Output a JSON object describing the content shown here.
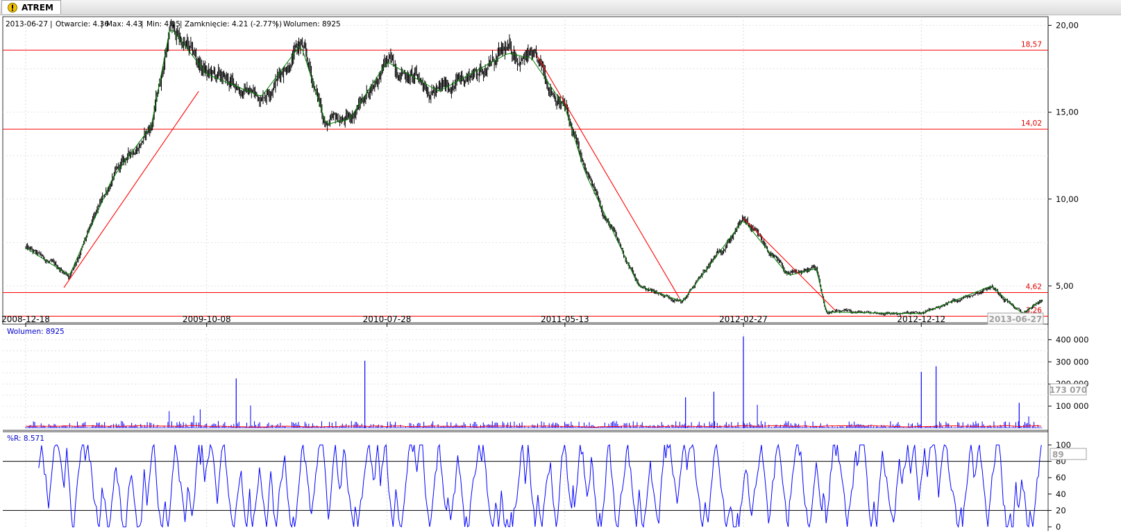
{
  "tab": {
    "label": "ATREM",
    "icon": "warning-icon"
  },
  "info_bar": {
    "date": "2013-06-27",
    "open": "Otwarcie: 4.36",
    "max": "Max: 4.43",
    "min": "Min: 4.15",
    "close": "Zamknięcie: 4.21 (-2.77%)",
    "volume": "Wolumen: 8925"
  },
  "colors": {
    "candles": "#000000",
    "close_line": "#008000",
    "levels": "#ff0000",
    "trendlines": "#ff0000",
    "volume": "#0000ff",
    "volume_avg": "#ff0000",
    "wpr": "#0000ff"
  },
  "chart_data": [
    {
      "type": "line",
      "name": "price",
      "ylim": [
        2.8,
        20.5
      ],
      "y_ticks": [
        "5,00",
        "10,00",
        "15,00",
        "20,00"
      ],
      "x_ticks": [
        "2008-12-18",
        "2009-10-08",
        "2010-07-28",
        "2011-05-13",
        "2012-02-27",
        "2012-12-12"
      ],
      "current_date_label": "2013-06-27",
      "x": [
        "2008-12-18",
        "2009-02-27",
        "2009-05-08",
        "2009-07-10",
        "2009-08-10",
        "2009-10-08",
        "2010-01-05",
        "2010-03-10",
        "2010-04-20",
        "2010-05-28",
        "2010-07-28",
        "2010-10-20",
        "2011-02-10",
        "2011-03-20",
        "2011-05-13",
        "2011-06-15",
        "2011-09-10",
        "2011-11-20",
        "2012-02-27",
        "2012-05-10",
        "2012-06-25",
        "2012-07-10",
        "2012-12-12",
        "2013-04-05",
        "2013-05-25",
        "2013-06-27"
      ],
      "close": [
        7.2,
        5.6,
        11.2,
        14.2,
        19.9,
        17.2,
        15.9,
        18.9,
        14.3,
        14.6,
        17.9,
        16.2,
        18.4,
        18.1,
        15.3,
        11.5,
        5.0,
        4.1,
        8.8,
        5.6,
        6.0,
        3.5,
        3.4,
        5.0,
        3.4,
        4.21
      ],
      "levels": [
        {
          "value": 18.57,
          "label": "18,57"
        },
        {
          "value": 14.02,
          "label": "14,02"
        },
        {
          "value": 4.62,
          "label": "4,62"
        },
        {
          "value": 3.26,
          "label": "3,26"
        }
      ],
      "trendlines": [
        {
          "x": [
            "2009-02-18",
            "2009-09-25"
          ],
          "y": [
            4.9,
            16.2
          ]
        },
        {
          "x": [
            "2011-03-28",
            "2011-11-15"
          ],
          "y": [
            18.3,
            4.3
          ]
        },
        {
          "x": [
            "2012-02-27",
            "2012-07-25"
          ],
          "y": [
            8.9,
            3.6
          ]
        }
      ]
    },
    {
      "type": "bar",
      "name": "volume",
      "label": "Wolumen: 8925",
      "ylim": [
        0,
        420000
      ],
      "y_ticks": [
        "100 000",
        "200 000",
        "300 000",
        "400 000"
      ],
      "current_value_label": "173 070",
      "spikes": [
        {
          "x": "2009-11-25",
          "value": 225000
        },
        {
          "x": "2010-06-22",
          "value": 305000
        },
        {
          "x": "2012-02-27",
          "value": 415000
        },
        {
          "x": "2012-01-10",
          "value": 165000
        },
        {
          "x": "2011-11-25",
          "value": 140000
        },
        {
          "x": "2012-12-12",
          "value": 255000
        },
        {
          "x": "2013-01-05",
          "value": 280000
        },
        {
          "x": "2013-05-20",
          "value": 115000
        }
      ]
    },
    {
      "type": "line",
      "name": "williams_r",
      "label": "%R: 8.571",
      "ylim": [
        0,
        100
      ],
      "y_ticks": [
        "0",
        "20",
        "40",
        "60",
        "80",
        "100"
      ],
      "hlines": [
        20,
        80
      ],
      "current_value_label": "89"
    }
  ]
}
